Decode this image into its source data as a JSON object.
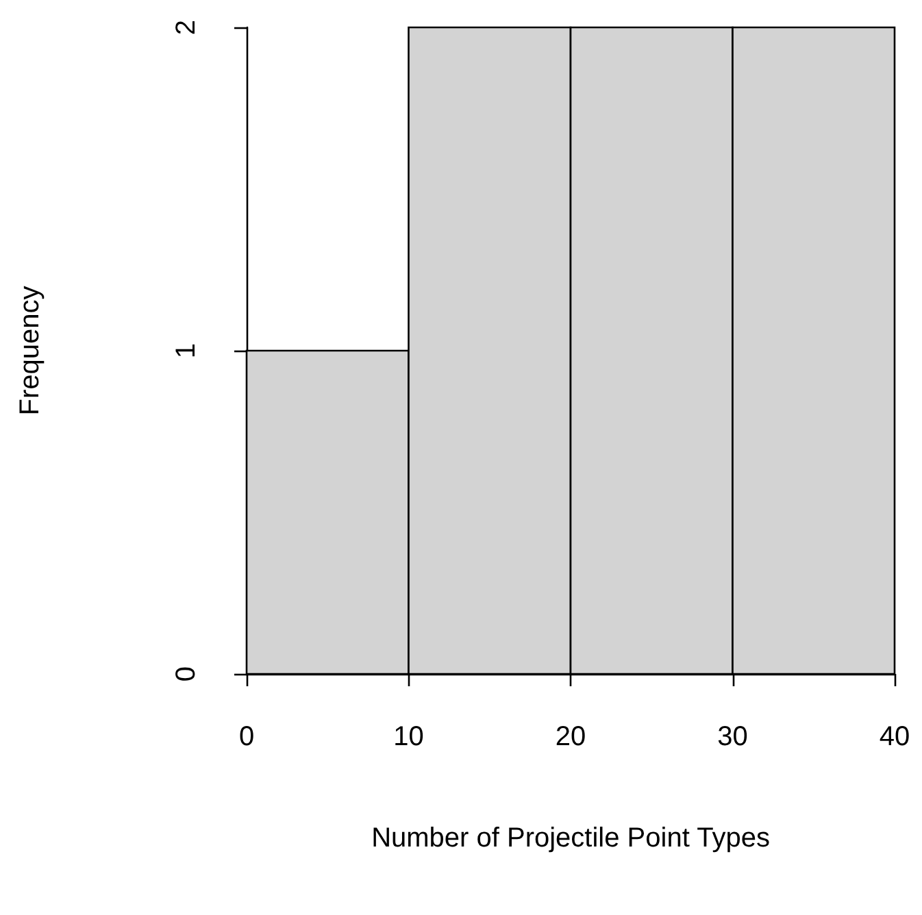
{
  "chart_data": {
    "type": "histogram",
    "xlabel": "Number of Projectile Point Types",
    "ylabel": "Frequency",
    "bins": [
      0,
      10,
      20,
      30,
      40
    ],
    "values": [
      1,
      2,
      2,
      2
    ],
    "color": "#d3d3d3",
    "xlim": [
      0,
      40
    ],
    "xticks": [
      0,
      10,
      20,
      30,
      40
    ],
    "ylim": [
      0,
      2
    ],
    "yticks": [
      0,
      1,
      2
    ]
  }
}
